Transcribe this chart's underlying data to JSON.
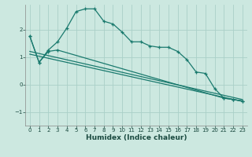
{
  "xlabel": "Humidex (Indice chaleur)",
  "background_color": "#cce8e0",
  "grid_color": "#aad0c8",
  "line_color": "#1a7a6e",
  "xlim": [
    -0.5,
    23.5
  ],
  "ylim": [
    -1.5,
    2.9
  ],
  "yticks": [
    -1,
    0,
    1,
    2
  ],
  "xticks": [
    0,
    1,
    2,
    3,
    4,
    5,
    6,
    7,
    8,
    9,
    10,
    11,
    12,
    13,
    14,
    15,
    16,
    17,
    18,
    19,
    20,
    21,
    22,
    23
  ],
  "series1_x": [
    0,
    1,
    2,
    3,
    4,
    5,
    6,
    7,
    8,
    9,
    10,
    11,
    12,
    13,
    14,
    15,
    16,
    17,
    18,
    19,
    20,
    21,
    22,
    23
  ],
  "series1_y": [
    1.75,
    0.8,
    1.25,
    1.55,
    2.05,
    2.65,
    2.75,
    2.75,
    2.3,
    2.2,
    1.9,
    1.55,
    1.55,
    1.4,
    1.35,
    1.35,
    1.2,
    0.9,
    0.45,
    0.4,
    -0.15,
    -0.5,
    -0.55,
    -0.6
  ],
  "series2_x": [
    0,
    1,
    2,
    3,
    21,
    22,
    23
  ],
  "series2_y": [
    1.75,
    0.8,
    1.2,
    1.25,
    -0.5,
    -0.55,
    -0.6
  ],
  "series3_x": [
    0,
    23
  ],
  "series3_y": [
    1.2,
    -0.55
  ],
  "series4_x": [
    0,
    23
  ],
  "series4_y": [
    1.1,
    -0.62
  ]
}
